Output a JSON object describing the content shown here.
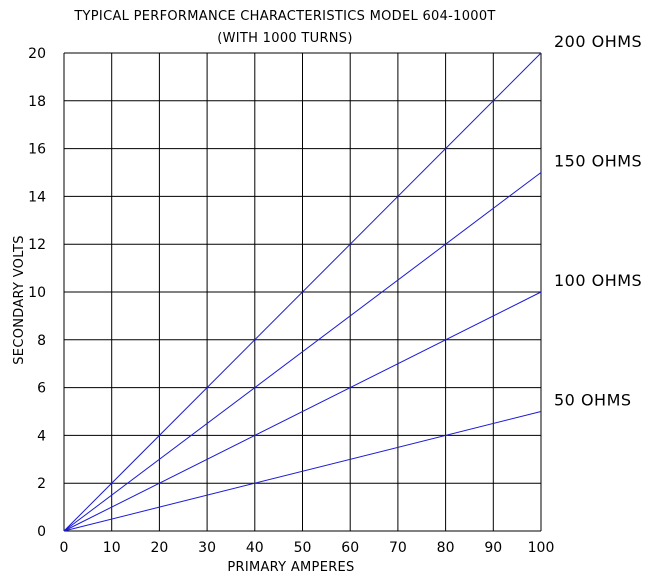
{
  "chart_data": {
    "type": "line",
    "title": "TYPICAL PERFORMANCE CHARACTERISTICS MODEL 604-1000T",
    "subtitle": "(WITH 1000 TURNS)",
    "xlabel": "PRIMARY AMPERES",
    "ylabel": "SECONDARY VOLTS",
    "xlim": [
      0,
      100
    ],
    "ylim": [
      0,
      20
    ],
    "x_ticks": [
      "0",
      "10",
      "20",
      "30",
      "40",
      "50",
      "60",
      "70",
      "80",
      "90",
      "100"
    ],
    "y_ticks": [
      "0",
      "2",
      "4",
      "6",
      "8",
      "10",
      "12",
      "14",
      "16",
      "18",
      "20"
    ],
    "grid": true,
    "series": [
      {
        "name": "200 OHMS",
        "x": [
          0,
          100
        ],
        "y": [
          0,
          20
        ],
        "color": "#1a1ad6"
      },
      {
        "name": "150 OHMS",
        "x": [
          0,
          100
        ],
        "y": [
          0,
          15
        ],
        "color": "#1a1ad6"
      },
      {
        "name": "100 OHMS",
        "x": [
          0,
          100
        ],
        "y": [
          0,
          10
        ],
        "color": "#1a1ad6"
      },
      {
        "name": "50 OHMS",
        "x": [
          0,
          100
        ],
        "y": [
          0,
          5
        ],
        "color": "#1a1ad6"
      }
    ]
  }
}
